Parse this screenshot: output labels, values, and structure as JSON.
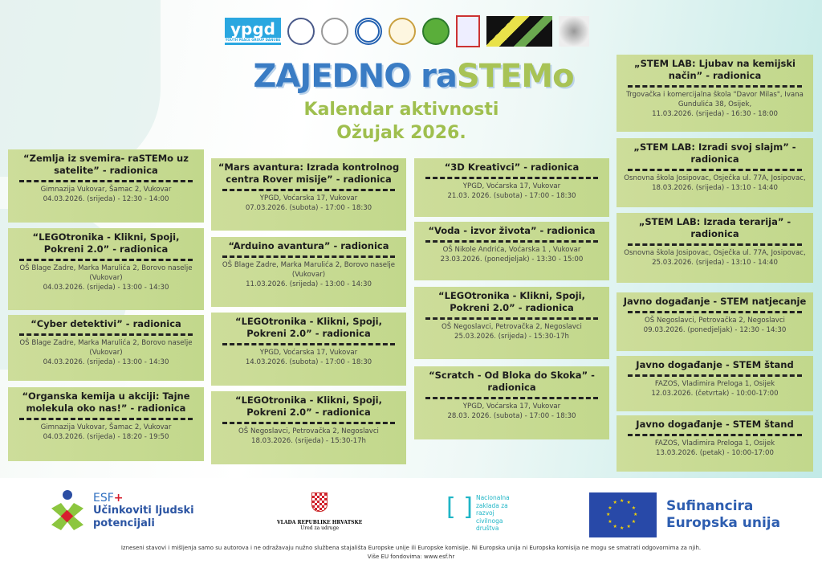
{
  "header": {
    "logos": [
      "ypgd",
      "hexagon-logo",
      "school-seal-logo",
      "circle-logo",
      "school-logo",
      "green-logo",
      "crest-logo",
      "yellow-snake-logo",
      "qr-logo"
    ],
    "ypgd_logo": "ypgd",
    "ypgd_tagline": "YOUTH PEACE GROUP DANUBE",
    "title_part1": "ZAJEDNO ra",
    "title_part2": "STEM",
    "title_part3": "o",
    "subtitle": "Kalendar aktivnosti",
    "month": "Ožujak 2026."
  },
  "colors": {
    "title_blue": "#3a7cc4",
    "accent_green": "#a8c356",
    "card_bg": "#c7d98f"
  },
  "columns": [
    [
      {
        "title": "“Zemlja iz svemira- raSTEMo uz satelite” - radionica",
        "lines": [
          "Gimnazija Vukovar, Šamac 2, Vukovar",
          "04.03.2026. (srijeda) - 12:30 - 14:00"
        ]
      },
      {
        "title": "“LEGOtronika - Klikni, Spoji, Pokreni 2.0” - radionica",
        "lines": [
          "OŠ Blage Zadre, Marka Marulića 2, Borovo naselje",
          "(Vukovar)",
          "04.03.2026. (srijeda) - 13:00 - 14:30"
        ]
      },
      {
        "title": "“Cyber detektivi” - radionica",
        "lines": [
          "OŠ Blage Zadre, Marka Marulića 2, Borovo naselje",
          "(Vukovar)",
          "04.03.2026. (srijeda) - 13:00 - 14:30"
        ]
      },
      {
        "title": "“Organska kemija u akciji: Tajne molekula oko nas!” - radionica",
        "lines": [
          "Gimnazija Vukovar, Šamac 2, Vukovar",
          "04.03.2026. (srijeda) - 18:20 - 19:50"
        ]
      }
    ],
    [
      {
        "title": "“Mars avantura: Izrada kontrolnog centra Rover misije” - radionica",
        "lines": [
          "YPGD, Voćarska 17, Vukovar",
          "07.03.2026. (subota) - 17:00 - 18:30"
        ]
      },
      {
        "title": "“Arduino avantura” - radionica",
        "lines": [
          "OŠ Blage Zadre, Marka Marulića 2, Borovo naselje",
          "(Vukovar)",
          "11.03.2026. (srijeda) - 13:00 - 14:30"
        ]
      },
      {
        "title": "“LEGOtronika - Klikni, Spoji, Pokreni 2.0” - radionica",
        "lines": [
          "YPGD, Voćarska 17, Vukovar",
          "14.03.2026. (subota) - 17:00 - 18:30"
        ]
      },
      {
        "title": "“LEGOtronika - Klikni, Spoji, Pokreni 2.0” - radionica",
        "lines": [
          "OŠ Negoslavci, Petrovačka 2, Negoslavci",
          "18.03.2026. (srijeda) - 15:30-17h"
        ]
      }
    ],
    [
      {
        "title": "“3D Kreativci” - radionica",
        "lines": [
          "YPGD, Voćarska 17, Vukovar",
          "21.03. 2026. (subota) - 17:00 - 18:30"
        ]
      },
      {
        "title": "“Voda - izvor života” - radionica",
        "lines": [
          "OŠ Nikole Andrića, Voćarska 1 , Vukovar",
          "23.03.2026. (ponedjeljak) - 13:30 - 15:00"
        ]
      },
      {
        "title": "“LEGOtronika - Klikni, Spoji, Pokreni 2.0” - radionica",
        "lines": [
          "OŠ Negoslavci, Petrovačka 2, Negoslavci",
          "25.03.2026. (srijeda) - 15:30-17h"
        ]
      },
      {
        "title": "“Scratch - Od Bloka do Skoka” - radionica",
        "lines": [
          "YPGD, Voćarska 17, Vukovar",
          "28.03. 2026. (subota) - 17:00 - 18:30"
        ]
      }
    ],
    [
      {
        "title": "„STEM LAB: Ljubav na kemijski način” - radionica",
        "lines": [
          "Trgovačka i komercijalna škola \"Davor Milas\", Ivana",
          "Gundulića 38, Osijek,",
          "11.03.2026. (srijeda) - 16:30 - 18:00"
        ]
      },
      {
        "title": "„STEM LAB: Izradi svoj slajm” - radionica",
        "lines": [
          "Osnovna škola Josipovac, Osječka ul. 77A, Josipovac,",
          "18.03.2026. (srijeda) - 13:10 - 14:40"
        ]
      },
      {
        "title": "„STEM LAB: Izrada terarija” - radionica",
        "lines": [
          "Osnovna škola Josipovac, Osječka ul. 77A, Josipovac,",
          "25.03.2026. (srijeda) - 13:10 - 14:40"
        ]
      },
      {
        "title": "Javno događanje - STEM natjecanje",
        "lines": [
          "OŠ Negoslavci, Petrovačka 2, Negoslavci",
          "09.03.2026.  (ponedjeljak) - 12:30 - 14:30"
        ]
      },
      {
        "title": "Javno događanje - STEM štand",
        "lines": [
          "FAZOS, Vladimira Preloga 1, Osijek",
          "12.03.2026.  (četvrtak) - 10:00-17:00"
        ]
      },
      {
        "title": "Javno događanje - STEM štand",
        "lines": [
          "FAZOS, Vladimira Preloga 1, Osijek",
          "13.03.2026.  (petak) - 10:00-17:00"
        ]
      }
    ]
  ],
  "footer": {
    "esf_label": "ESF",
    "esf_plus": "+",
    "esf_line1": "Učinkoviti ljudski",
    "esf_line2": "potencijali",
    "vlada_name": "VLADA REPUBLIKE HRVATSKE",
    "vlada_office": "Ured za udruge",
    "nz_lines": [
      "Nacionalna",
      "zaklada za",
      "razvoj",
      "civilnoga",
      "društva"
    ],
    "eu_line1": "Sufinancira",
    "eu_line2": "Europska unija",
    "disclaimer": "Izneseni stavovi i mišljenja samo su autorova i ne odražavaju nužno službena stajališta Europske  unije ili Europske komisije. Ni Europska unija ni Europska komisija ne mogu se smatrati odgovornima za njih.",
    "more_info": "Više EU fondovima: www.esf.hr"
  }
}
